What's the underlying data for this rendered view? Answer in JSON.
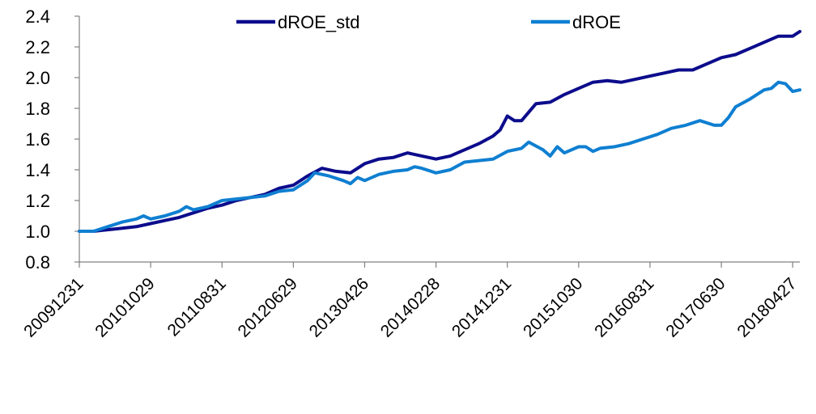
{
  "chart_data": {
    "type": "line",
    "title": "",
    "xlabel": "",
    "ylabel": "",
    "ylim": [
      0.8,
      2.4
    ],
    "yticks": [
      0.8,
      1.0,
      1.2,
      1.4,
      1.6,
      1.8,
      2.0,
      2.2,
      2.4
    ],
    "ytick_labels": [
      "0.8",
      "1.0",
      "1.2",
      "1.4",
      "1.6",
      "1.8",
      "2.0",
      "2.2",
      "2.4"
    ],
    "x_tick_labels": [
      "20091231",
      "20101029",
      "20110831",
      "20120629",
      "20130426",
      "20140228",
      "20141231",
      "20151030",
      "20160831",
      "20170630",
      "20180427"
    ],
    "x_tick_months": [
      0,
      10,
      20,
      30,
      40,
      50,
      60,
      70,
      80,
      90,
      100
    ],
    "grid": false,
    "legend_position": "top",
    "series": [
      {
        "name": "dROE_std",
        "color": "#0c0c8c",
        "points": [
          [
            0,
            1.0
          ],
          [
            2,
            1.0
          ],
          [
            4,
            1.01
          ],
          [
            6,
            1.02
          ],
          [
            8,
            1.03
          ],
          [
            10,
            1.05
          ],
          [
            12,
            1.07
          ],
          [
            14,
            1.09
          ],
          [
            16,
            1.12
          ],
          [
            18,
            1.15
          ],
          [
            20,
            1.17
          ],
          [
            22,
            1.2
          ],
          [
            24,
            1.22
          ],
          [
            26,
            1.24
          ],
          [
            28,
            1.28
          ],
          [
            30,
            1.3
          ],
          [
            32,
            1.36
          ],
          [
            34,
            1.41
          ],
          [
            36,
            1.39
          ],
          [
            38,
            1.38
          ],
          [
            40,
            1.44
          ],
          [
            42,
            1.47
          ],
          [
            44,
            1.48
          ],
          [
            46,
            1.51
          ],
          [
            48,
            1.49
          ],
          [
            50,
            1.47
          ],
          [
            52,
            1.49
          ],
          [
            54,
            1.53
          ],
          [
            56,
            1.57
          ],
          [
            58,
            1.62
          ],
          [
            59,
            1.66
          ],
          [
            60,
            1.75
          ],
          [
            61,
            1.72
          ],
          [
            62,
            1.72
          ],
          [
            64,
            1.83
          ],
          [
            66,
            1.84
          ],
          [
            68,
            1.89
          ],
          [
            70,
            1.93
          ],
          [
            72,
            1.97
          ],
          [
            74,
            1.98
          ],
          [
            76,
            1.97
          ],
          [
            78,
            1.99
          ],
          [
            80,
            2.01
          ],
          [
            82,
            2.03
          ],
          [
            84,
            2.05
          ],
          [
            86,
            2.05
          ],
          [
            88,
            2.09
          ],
          [
            90,
            2.13
          ],
          [
            92,
            2.15
          ],
          [
            94,
            2.19
          ],
          [
            96,
            2.23
          ],
          [
            98,
            2.27
          ],
          [
            100,
            2.27
          ],
          [
            101,
            2.3
          ]
        ]
      },
      {
        "name": "dROE",
        "color": "#0f7fd1",
        "points": [
          [
            0,
            1.0
          ],
          [
            2,
            1.0
          ],
          [
            4,
            1.03
          ],
          [
            6,
            1.06
          ],
          [
            8,
            1.08
          ],
          [
            9,
            1.1
          ],
          [
            10,
            1.08
          ],
          [
            12,
            1.1
          ],
          [
            14,
            1.13
          ],
          [
            15,
            1.16
          ],
          [
            16,
            1.14
          ],
          [
            18,
            1.16
          ],
          [
            20,
            1.2
          ],
          [
            22,
            1.21
          ],
          [
            24,
            1.22
          ],
          [
            26,
            1.23
          ],
          [
            28,
            1.26
          ],
          [
            30,
            1.27
          ],
          [
            32,
            1.33
          ],
          [
            33,
            1.38
          ],
          [
            35,
            1.36
          ],
          [
            37,
            1.33
          ],
          [
            38,
            1.31
          ],
          [
            39,
            1.35
          ],
          [
            40,
            1.33
          ],
          [
            42,
            1.37
          ],
          [
            44,
            1.39
          ],
          [
            46,
            1.4
          ],
          [
            47,
            1.42
          ],
          [
            48,
            1.41
          ],
          [
            50,
            1.38
          ],
          [
            52,
            1.4
          ],
          [
            54,
            1.45
          ],
          [
            56,
            1.46
          ],
          [
            58,
            1.47
          ],
          [
            60,
            1.52
          ],
          [
            62,
            1.54
          ],
          [
            63,
            1.58
          ],
          [
            65,
            1.53
          ],
          [
            66,
            1.49
          ],
          [
            67,
            1.55
          ],
          [
            68,
            1.51
          ],
          [
            70,
            1.55
          ],
          [
            71,
            1.55
          ],
          [
            72,
            1.52
          ],
          [
            73,
            1.54
          ],
          [
            75,
            1.55
          ],
          [
            77,
            1.57
          ],
          [
            79,
            1.6
          ],
          [
            81,
            1.63
          ],
          [
            83,
            1.67
          ],
          [
            85,
            1.69
          ],
          [
            87,
            1.72
          ],
          [
            89,
            1.69
          ],
          [
            90,
            1.69
          ],
          [
            91,
            1.74
          ],
          [
            92,
            1.81
          ],
          [
            94,
            1.86
          ],
          [
            96,
            1.92
          ],
          [
            97,
            1.93
          ],
          [
            98,
            1.97
          ],
          [
            99,
            1.96
          ],
          [
            100,
            1.91
          ],
          [
            101,
            1.92
          ]
        ]
      }
    ]
  }
}
